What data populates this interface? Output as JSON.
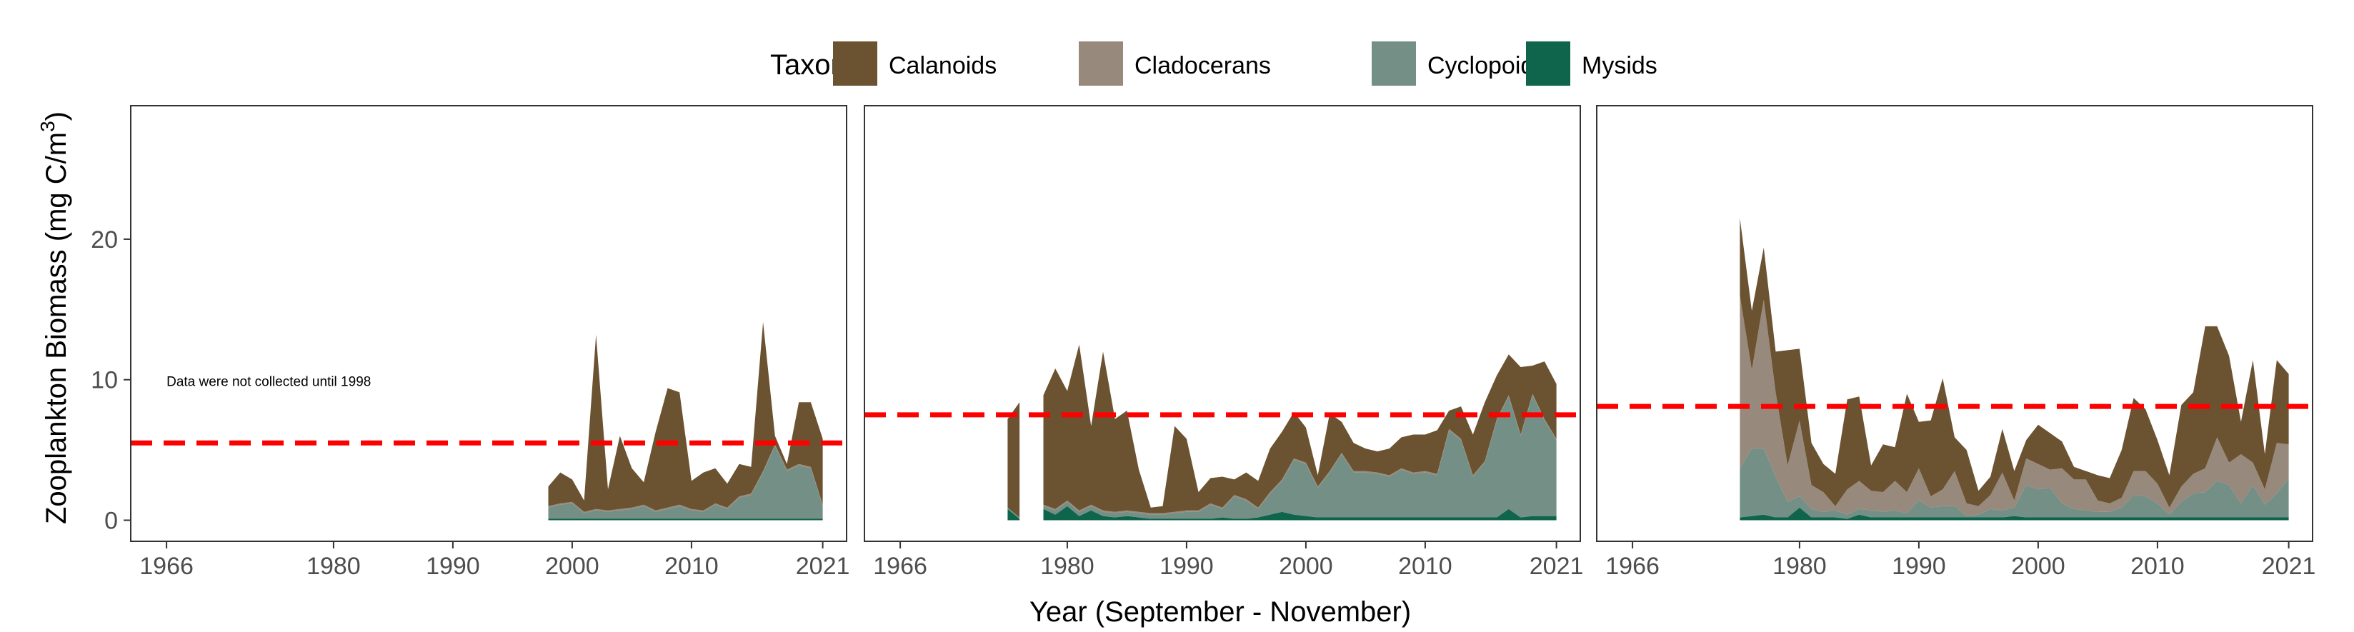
{
  "chart_data": {
    "type": "area",
    "stacked": true,
    "legend": {
      "title": "Taxon",
      "position": "top",
      "entries": [
        "Calanoids",
        "Cladocerans",
        "Cyclopoids",
        "Mysids"
      ]
    },
    "colors": {
      "Calanoids": "#6b5230",
      "Cladocerans": "#978a7c",
      "Cyclopoids": "#738f86",
      "Mysids": "#0f654c",
      "reference_line": "#ff0000",
      "panel_border": "#333333",
      "axis_text": "#4d4d4d"
    },
    "xlabel": "Year (September - November)",
    "ylabel": "Zooplankton Biomass (mg C/m",
    "ylabel_superscript": "3",
    "ylabel_suffix": ")",
    "x_ticks": [
      1966,
      1980,
      1990,
      2000,
      2010,
      2021
    ],
    "x_tick_labels": [
      "1966",
      "1980",
      "1990",
      "2000",
      "2010",
      "2021"
    ],
    "xlim": [
      1963,
      2023
    ],
    "y_ticks": [
      0,
      10,
      20
    ],
    "y_tick_labels": [
      "0",
      "10",
      "20"
    ],
    "ylim": [
      -1.5,
      29.5
    ],
    "grid": false,
    "panels": [
      {
        "mean_line": 5.5,
        "annotation": {
          "text": "Data were not collected until 1998",
          "x": 1966,
          "y": 9.9
        },
        "segments": [
          {
            "years": [
              1998,
              1999,
              2000,
              2001,
              2002,
              2003,
              2004,
              2005,
              2006,
              2007,
              2008,
              2009,
              2010,
              2011,
              2012,
              2013,
              2014,
              2015,
              2016,
              2017,
              2018,
              2019,
              2020,
              2021
            ],
            "series": [
              {
                "name": "Mysids",
                "values": [
                  0.1,
                  0.1,
                  0.1,
                  0.1,
                  0.1,
                  0.1,
                  0.1,
                  0.1,
                  0.1,
                  0.1,
                  0.1,
                  0.1,
                  0.1,
                  0.1,
                  0.1,
                  0.1,
                  0.1,
                  0.1,
                  0.1,
                  0.1,
                  0.1,
                  0.1,
                  0.1,
                  0.1
                ]
              },
              {
                "name": "Cyclopoids",
                "values": [
                  0.8,
                  1.0,
                  1.1,
                  0.4,
                  0.6,
                  0.5,
                  0.6,
                  0.7,
                  0.9,
                  0.5,
                  0.7,
                  0.9,
                  0.6,
                  0.5,
                  1.0,
                  0.7,
                  1.5,
                  1.7,
                  3.3,
                  5.2,
                  3.4,
                  3.8,
                  3.6,
                  0.9
                ]
              },
              {
                "name": "Cladocerans",
                "values": [
                  0.1,
                  0.1,
                  0.1,
                  0.1,
                  0.1,
                  0.1,
                  0.1,
                  0.1,
                  0.1,
                  0.1,
                  0.1,
                  0.1,
                  0.1,
                  0.1,
                  0.1,
                  0.1,
                  0.1,
                  0.1,
                  0.1,
                  0.1,
                  0.1,
                  0.1,
                  0.1,
                  0.1
                ]
              },
              {
                "name": "Calanoids",
                "values": [
                  1.4,
                  2.2,
                  1.6,
                  0.8,
                  12.4,
                  1.5,
                  5.2,
                  2.8,
                  1.6,
                  5.6,
                  8.5,
                  8.0,
                  2.0,
                  2.7,
                  2.5,
                  1.7,
                  2.3,
                  1.9,
                  10.6,
                  0.6,
                  0.4,
                  4.4,
                  4.6,
                  4.7
                ]
              }
            ]
          }
        ]
      },
      {
        "mean_line": 7.5,
        "segments": [
          {
            "years": [
              1975,
              1976
            ],
            "series": [
              {
                "name": "Mysids",
                "values": [
                  0.8,
                  0.1
                ]
              },
              {
                "name": "Cyclopoids",
                "values": [
                  0.1,
                  0.1
                ]
              },
              {
                "name": "Cladocerans",
                "values": [
                  0.0,
                  0.0
                ]
              },
              {
                "name": "Calanoids",
                "values": [
                  6.3,
                  8.2
                ]
              }
            ]
          },
          {
            "years": [
              1978,
              1979,
              1980,
              1981,
              1982,
              1983,
              1984,
              1985,
              1986,
              1987,
              1988,
              1989,
              1990,
              1991,
              1992,
              1993,
              1994,
              1995,
              1996,
              1997,
              1998,
              1999,
              2000,
              2001,
              2002,
              2003,
              2004,
              2005,
              2006,
              2007,
              2008,
              2009,
              2010,
              2011,
              2012,
              2013,
              2014,
              2015,
              2016,
              2017,
              2018,
              2019,
              2020,
              2021
            ],
            "series": [
              {
                "name": "Mysids",
                "values": [
                  0.8,
                  0.4,
                  1.0,
                  0.3,
                  0.7,
                  0.3,
                  0.2,
                  0.3,
                  0.2,
                  0.1,
                  0.1,
                  0.1,
                  0.1,
                  0.1,
                  0.1,
                  0.2,
                  0.1,
                  0.1,
                  0.2,
                  0.4,
                  0.6,
                  0.4,
                  0.3,
                  0.2,
                  0.2,
                  0.2,
                  0.2,
                  0.2,
                  0.2,
                  0.2,
                  0.2,
                  0.2,
                  0.2,
                  0.2,
                  0.2,
                  0.2,
                  0.2,
                  0.2,
                  0.2,
                  0.8,
                  0.2,
                  0.3,
                  0.3,
                  0.3
                ]
              },
              {
                "name": "Cyclopoids",
                "values": [
                  0.2,
                  0.3,
                  0.3,
                  0.3,
                  0.3,
                  0.3,
                  0.3,
                  0.3,
                  0.3,
                  0.3,
                  0.3,
                  0.4,
                  0.5,
                  0.5,
                  1.0,
                  0.6,
                  1.6,
                  1.3,
                  0.6,
                  1.5,
                  2.2,
                  3.9,
                  3.7,
                  2.1,
                  3.2,
                  4.5,
                  3.2,
                  3.2,
                  3.1,
                  2.9,
                  3.4,
                  3.1,
                  3.2,
                  3.0,
                  6.2,
                  5.5,
                  2.9,
                  3.9,
                  6.9,
                  8.0,
                  5.8,
                  8.6,
                  6.8,
                  5.4
                ]
              },
              {
                "name": "Cladocerans",
                "values": [
                  0.1,
                  0.1,
                  0.1,
                  0.1,
                  0.1,
                  0.1,
                  0.1,
                  0.1,
                  0.1,
                  0.1,
                  0.1,
                  0.1,
                  0.1,
                  0.1,
                  0.1,
                  0.1,
                  0.1,
                  0.1,
                  0.1,
                  0.1,
                  0.1,
                  0.1,
                  0.1,
                  0.1,
                  0.1,
                  0.1,
                  0.1,
                  0.1,
                  0.1,
                  0.1,
                  0.1,
                  0.1,
                  0.1,
                  0.1,
                  0.1,
                  0.1,
                  0.1,
                  0.1,
                  0.1,
                  0.1,
                  0.1,
                  0.1,
                  0.1,
                  0.1
                ]
              },
              {
                "name": "Calanoids",
                "values": [
                  7.8,
                  10.0,
                  7.8,
                  11.8,
                  5.6,
                  11.3,
                  6.6,
                  7.1,
                  3.0,
                  0.4,
                  0.5,
                  6.1,
                  5.1,
                  1.3,
                  1.8,
                  2.2,
                  1.1,
                  1.9,
                  1.9,
                  3.1,
                  3.4,
                  3.3,
                  2.5,
                  0.8,
                  4.1,
                  2.2,
                  2.0,
                  1.6,
                  1.5,
                  1.9,
                  2.2,
                  2.7,
                  2.6,
                  3.1,
                  1.3,
                  2.3,
                  2.9,
                  4.2,
                  3.1,
                  2.9,
                  4.8,
                  2.0,
                  4.1,
                  3.9
                ]
              }
            ]
          }
        ]
      },
      {
        "mean_line": 8.1,
        "segments": [
          {
            "years": [
              1975,
              1976,
              1977,
              1978,
              1979,
              1980,
              1981,
              1982,
              1983,
              1984,
              1985,
              1986,
              1987,
              1988,
              1989,
              1990,
              1991,
              1992,
              1993,
              1994,
              1995,
              1996,
              1997,
              1998,
              1999,
              2000,
              2001,
              2002,
              2003,
              2004,
              2005,
              2006,
              2007,
              2008,
              2009,
              2010,
              2011,
              2012,
              2013,
              2014,
              2015,
              2016,
              2017,
              2018,
              2019,
              2020,
              2021
            ],
            "series": [
              {
                "name": "Mysids",
                "values": [
                  0.2,
                  0.3,
                  0.4,
                  0.2,
                  0.2,
                  0.9,
                  0.2,
                  0.2,
                  0.2,
                  0.1,
                  0.4,
                  0.2,
                  0.2,
                  0.2,
                  0.2,
                  0.2,
                  0.2,
                  0.2,
                  0.2,
                  0.2,
                  0.2,
                  0.2,
                  0.2,
                  0.3,
                  0.2,
                  0.2,
                  0.2,
                  0.2,
                  0.2,
                  0.2,
                  0.2,
                  0.2,
                  0.2,
                  0.2,
                  0.2,
                  0.2,
                  0.2,
                  0.2,
                  0.2,
                  0.2,
                  0.2,
                  0.2,
                  0.2,
                  0.2,
                  0.2,
                  0.2,
                  0.2
                ]
              },
              {
                "name": "Cyclopoids",
                "values": [
                  3.5,
                  4.8,
                  4.7,
                  2.9,
                  1.1,
                  0.8,
                  0.6,
                  0.4,
                  0.5,
                  0.3,
                  0.4,
                  0.5,
                  0.4,
                  0.5,
                  0.3,
                  1.2,
                  0.7,
                  0.8,
                  0.8,
                  0.1,
                  0.2,
                  0.6,
                  0.5,
                  0.6,
                  2.3,
                  2.0,
                  2.1,
                  1.0,
                  0.6,
                  0.5,
                  0.4,
                  0.4,
                  0.7,
                  1.6,
                  1.5,
                  1.0,
                  0.2,
                  1.1,
                  1.7,
                  1.8,
                  2.6,
                  2.3,
                  1.0,
                  2.3,
                  0.9,
                  1.7,
                  2.8
                ]
              },
              {
                "name": "Cladocerans",
                "values": [
                  12.3,
                  5.6,
                  10.6,
                  6.0,
                  2.6,
                  5.4,
                  1.7,
                  1.4,
                  0.3,
                  1.8,
                  2.0,
                  1.4,
                  1.4,
                  2.1,
                  1.5,
                  2.3,
                  0.8,
                  1.2,
                  2.5,
                  0.9,
                  0.6,
                  1.0,
                  2.7,
                  0.5,
                  1.9,
                  1.8,
                  1.3,
                  2.5,
                  2.1,
                  2.2,
                  0.8,
                  0.6,
                  0.7,
                  1.7,
                  1.8,
                  1.4,
                  0.5,
                  1.1,
                  1.4,
                  1.7,
                  3.1,
                  1.6,
                  3.5,
                  1.6,
                  1.1,
                  3.6,
                  2.4
                ]
              },
              {
                "name": "Calanoids",
                "values": [
                  5.5,
                  4.2,
                  3.7,
                  2.9,
                  8.2,
                  5.1,
                  3.0,
                  2.0,
                  2.3,
                  6.4,
                  6.0,
                  1.8,
                  3.4,
                  2.4,
                  7.0,
                  3.3,
                  5.4,
                  7.9,
                  2.4,
                  3.8,
                  1.1,
                  1.3,
                  3.1,
                  2.1,
                  1.3,
                  2.8,
                  2.6,
                  1.9,
                  0.9,
                  0.6,
                  1.8,
                  1.8,
                  3.4,
                  5.2,
                  4.4,
                  3.1,
                  2.3,
                  5.8,
                  5.8,
                  10.1,
                  7.9,
                  7.6,
                  2.3,
                  7.3,
                  2.5,
                  5.9,
                  5.0
                ]
              }
            ]
          }
        ]
      }
    ]
  }
}
